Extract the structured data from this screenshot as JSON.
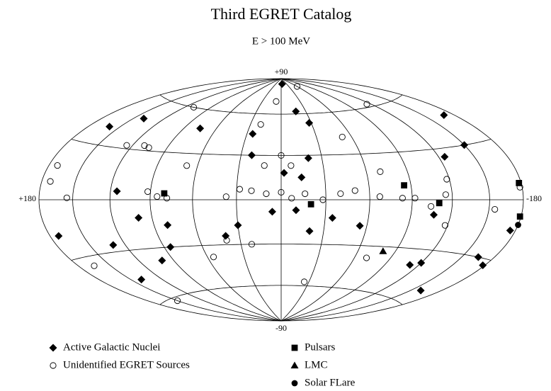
{
  "chart_data": {
    "type": "scatter",
    "projection": "hammer-aitoff",
    "title": "Third EGRET Catalog",
    "subtitle": "E > 100 MeV",
    "xlim": [
      180,
      -180
    ],
    "xticks": [
      {
        "value": 180,
        "label": "+180"
      },
      -180
    ],
    "ylim": [
      -90,
      90
    ],
    "yticks": [
      {
        "value": 90,
        "label": "+90"
      },
      -90
    ],
    "grid": true,
    "color": "#000000",
    "series": [
      {
        "name": "Active Galactic Nuclei",
        "marker": "diamond",
        "x": [
          -5,
          -28,
          -18,
          25,
          75,
          22,
          -2,
          -14,
          -20,
          -10,
          6,
          40,
          30,
          -20,
          100,
          115,
          100,
          140,
          160,
          140,
          -107,
          -125,
          -165,
          -178,
          -175,
          -160,
          -120,
          -150,
          -170,
          -35,
          -55,
          85,
          80,
          130,
          -112,
          172
        ],
        "values": [
          85,
          53,
          62,
          45,
          47,
          30,
          18,
          15,
          28,
          -7,
          -8,
          -24,
          -17,
          -21,
          -11,
          5,
          -38,
          -47,
          40,
          48,
          -9,
          25,
          -30,
          -33,
          -15,
          -52,
          -38,
          30,
          46,
          -12,
          -17,
          -30,
          -16,
          -26,
          -40,
          -18
        ]
      },
      {
        "name": "Unidentified EGRET Sources",
        "marker": "circle",
        "x": [
          8,
          -60,
          110,
          110,
          125,
          172,
          172,
          155,
          92,
          85,
          78,
          37,
          28,
          20,
          10,
          0,
          -7,
          -16,
          -28,
          -40,
          -50,
          -67,
          -83,
          -92,
          -104,
          -115,
          -118,
          -118,
          0,
          12,
          -7,
          40,
          22,
          55,
          -25,
          150,
          165,
          -70,
          -70,
          -155,
          -178,
          -52,
          -115,
          68,
          105,
          20
        ],
        "values": [
          70,
          82,
          60,
          33,
          32,
          17,
          9,
          1,
          5,
          2,
          1,
          2,
          7,
          6,
          4,
          5,
          1,
          4,
          0,
          4,
          6,
          2,
          1,
          1,
          -4,
          3,
          -15,
          12,
          30,
          23,
          23,
          -27,
          -30,
          -38,
          -57,
          -62,
          -35,
          18,
          -38,
          -5,
          6,
          42,
          62,
          22,
          32,
          52
        ]
      },
      {
        "name": "Pulsars",
        "marker": "square",
        "x": [
          80,
          -20,
          -85,
          -110,
          -178,
          -179
        ],
        "values": [
          4,
          -3,
          9,
          -2,
          8,
          -8
        ]
      },
      {
        "name": "LMC",
        "marker": "triangle",
        "x": [
          -80
        ],
        "values": [
          -33
        ]
      },
      {
        "name": "Solar FLare",
        "marker": "dot",
        "x": [
          -180
        ],
        "values": [
          -12
        ]
      }
    ]
  }
}
